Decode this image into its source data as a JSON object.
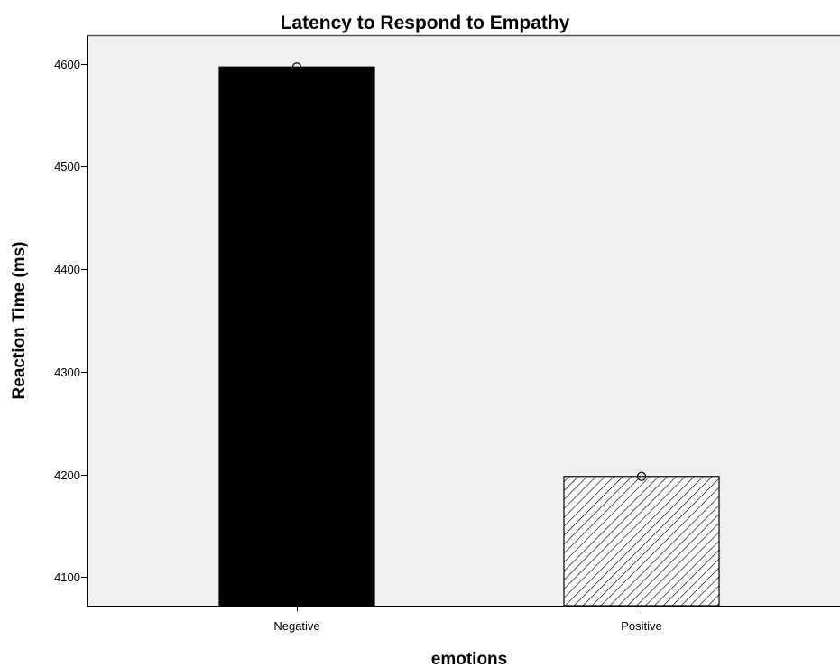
{
  "chart_data": {
    "type": "bar",
    "title": "Latency to Respond to Empathy",
    "xlabel": "emotions",
    "ylabel": "Reaction Time (ms)",
    "categories": [
      "Negative",
      "Positive"
    ],
    "values": [
      4597,
      4198
    ],
    "ylim": [
      4072,
      4628
    ],
    "yticks": [
      4100,
      4200,
      4300,
      4400,
      4500,
      4600
    ],
    "ytick_labels": [
      "4100",
      "4200",
      "4300",
      "4400",
      "4500",
      "4600"
    ],
    "grid": false,
    "legend": "none",
    "bar_styles": [
      {
        "fill": "#000000",
        "pattern": "solid"
      },
      {
        "fill": "#ffffff",
        "pattern": "diagonal-hatch"
      }
    ],
    "marker": "open-circle",
    "plot_background": "#f0f0f0"
  }
}
